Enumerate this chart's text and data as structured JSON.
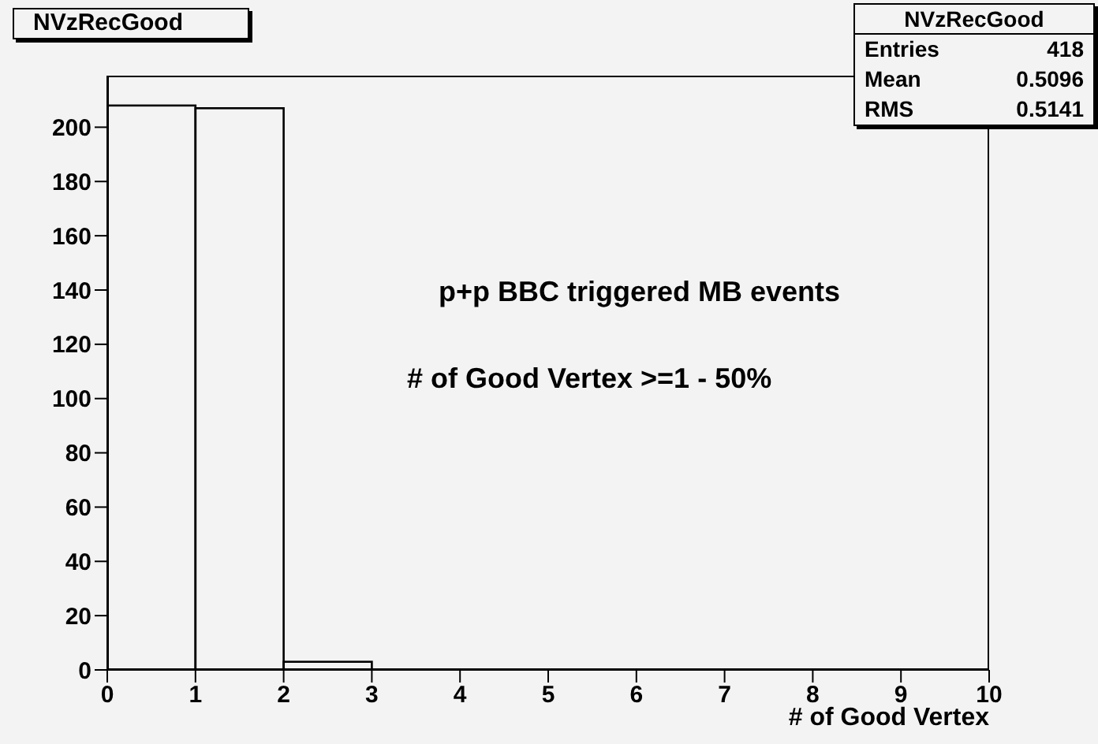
{
  "chart_data": {
    "type": "histogram",
    "title": "NVzRecGood",
    "xlabel": "# of Good Vertex",
    "bins": [
      0,
      1,
      2,
      3,
      4,
      5,
      6,
      7,
      8,
      9,
      10
    ],
    "values": [
      208,
      207,
      3,
      0,
      0,
      0,
      0,
      0,
      0,
      0
    ],
    "color": "#000000",
    "xlim": [
      0,
      10
    ],
    "xticks": [
      0,
      1,
      2,
      3,
      4,
      5,
      6,
      7,
      8,
      9,
      10
    ],
    "ylim": [
      0,
      219
    ],
    "yticks": [
      0,
      20,
      40,
      60,
      80,
      100,
      120,
      140,
      160,
      180,
      200
    ],
    "grid": false,
    "legend": false,
    "annotations": [
      "p+p BBC triggered MB events",
      "# of Good Vertex >=1 - 50%",
      "NVzRecGood",
      "Entries",
      "418",
      "Mean",
      "0.5096",
      "RMS",
      "0.5141"
    ]
  }
}
